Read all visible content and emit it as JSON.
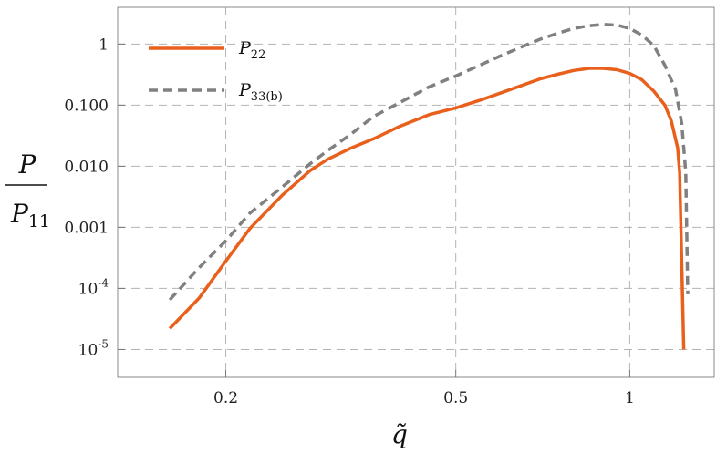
{
  "chart_data": {
    "type": "line",
    "x_scale": "log",
    "y_scale": "log",
    "xlim": [
      0.13,
      1.4
    ],
    "ylim": [
      3.5e-06,
      4
    ],
    "grid": true,
    "grid_style": "dashed",
    "legend_position": "top-left",
    "xlabel": "q̃",
    "ylabel": {
      "numerator": "P",
      "denominator": "P",
      "denominator_sub": "11"
    },
    "x_ticks": [
      {
        "value": 0.2,
        "label": "0.2"
      },
      {
        "value": 0.5,
        "label": "0.5"
      },
      {
        "value": 1,
        "label": "1"
      }
    ],
    "y_ticks": [
      {
        "value": 1,
        "label": "1"
      },
      {
        "value": 0.1,
        "label": "0.100"
      },
      {
        "value": 0.01,
        "label": "0.010"
      },
      {
        "value": 0.001,
        "label": "0.001"
      },
      {
        "value": 0.0001,
        "label": "10",
        "exp": "-4"
      },
      {
        "value": 1e-05,
        "label": "10",
        "exp": "-5"
      }
    ],
    "series": [
      {
        "name": "P",
        "sub": "22",
        "color": "#e8601c",
        "style": "solid",
        "points": [
          [
            0.16,
            2.2e-05
          ],
          [
            0.18,
            7e-05
          ],
          [
            0.2,
            0.00028
          ],
          [
            0.22,
            0.00095
          ],
          [
            0.25,
            0.0033
          ],
          [
            0.28,
            0.0085
          ],
          [
            0.3,
            0.013
          ],
          [
            0.33,
            0.02
          ],
          [
            0.36,
            0.028
          ],
          [
            0.4,
            0.045
          ],
          [
            0.45,
            0.07
          ],
          [
            0.5,
            0.09
          ],
          [
            0.55,
            0.12
          ],
          [
            0.6,
            0.16
          ],
          [
            0.65,
            0.21
          ],
          [
            0.7,
            0.27
          ],
          [
            0.75,
            0.32
          ],
          [
            0.8,
            0.37
          ],
          [
            0.85,
            0.4
          ],
          [
            0.9,
            0.4
          ],
          [
            0.95,
            0.38
          ],
          [
            1.0,
            0.33
          ],
          [
            1.05,
            0.26
          ],
          [
            1.1,
            0.17
          ],
          [
            1.15,
            0.1
          ],
          [
            1.18,
            0.055
          ],
          [
            1.21,
            0.02
          ],
          [
            1.22,
            0.008
          ],
          [
            1.24,
            1e-05
          ]
        ]
      },
      {
        "name": "P",
        "sub": "33(b)",
        "color": "#808080",
        "style": "dashed",
        "points": [
          [
            0.16,
            6.5e-05
          ],
          [
            0.18,
            0.00022
          ],
          [
            0.2,
            0.0006
          ],
          [
            0.22,
            0.0017
          ],
          [
            0.25,
            0.0045
          ],
          [
            0.28,
            0.011
          ],
          [
            0.3,
            0.018
          ],
          [
            0.33,
            0.034
          ],
          [
            0.36,
            0.065
          ],
          [
            0.4,
            0.11
          ],
          [
            0.45,
            0.2
          ],
          [
            0.5,
            0.3
          ],
          [
            0.55,
            0.45
          ],
          [
            0.6,
            0.65
          ],
          [
            0.65,
            0.9
          ],
          [
            0.7,
            1.2
          ],
          [
            0.75,
            1.5
          ],
          [
            0.8,
            1.8
          ],
          [
            0.85,
            2.0
          ],
          [
            0.9,
            2.1
          ],
          [
            0.95,
            2.05
          ],
          [
            1.0,
            1.8
          ],
          [
            1.05,
            1.4
          ],
          [
            1.1,
            0.95
          ],
          [
            1.15,
            0.45
          ],
          [
            1.2,
            0.18
          ],
          [
            1.23,
            0.05
          ],
          [
            1.25,
            0.008
          ],
          [
            1.26,
            8e-05
          ]
        ]
      }
    ]
  }
}
